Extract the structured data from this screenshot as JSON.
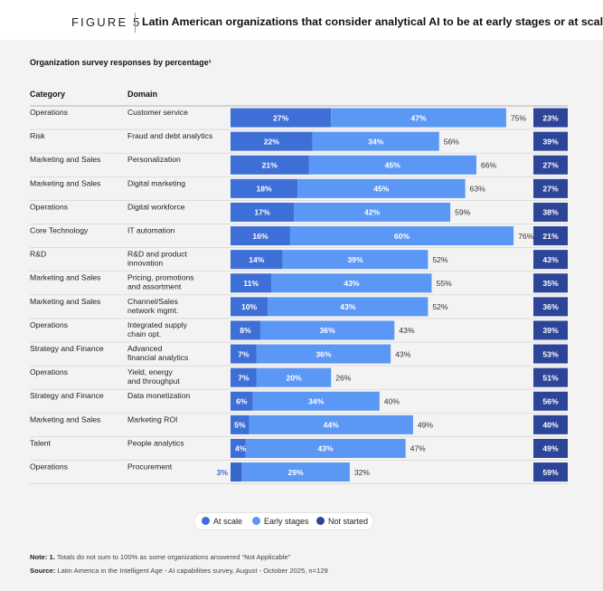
{
  "figure": {
    "label": "FIGURE 5",
    "title": "Latin American organizations that consider analytical AI to be at early stages or at scale"
  },
  "subtitle": "Organization survey responses by percentage¹",
  "headers": {
    "category": "Category",
    "domain": "Domain"
  },
  "colors": {
    "at_scale": "#3d6fd6",
    "early_stages": "#5b97f5",
    "not_started": "#2d4599",
    "at_scale_low": "#3568c9",
    "label_light": "#ffffff",
    "label_dark": "#333333",
    "row_line": "#d4d4d4",
    "header_line": "#9e9e9e"
  },
  "legend": [
    {
      "label": "At scale",
      "color": "#3d6fd6"
    },
    {
      "label": "Early stages",
      "color": "#5b97f5"
    },
    {
      "label": "Not started",
      "color": "#2d4599"
    }
  ],
  "chart_data": {
    "type": "bar",
    "orientation": "horizontal",
    "stacked": true,
    "x_range": [
      0,
      100
    ],
    "unit": "%",
    "series_names": [
      "At scale",
      "Early stages",
      "Not started"
    ],
    "rows": [
      {
        "category": "Operations",
        "domain": "Customer service",
        "at_scale": 27,
        "early": 47,
        "total": 75,
        "not_started": 23
      },
      {
        "category": "Risk",
        "domain": "Fraud and debt analytics",
        "at_scale": 22,
        "early": 34,
        "total": 56,
        "not_started": 39
      },
      {
        "category": "Marketing and Sales",
        "domain": "Personalization",
        "at_scale": 21,
        "early": 45,
        "total": 66,
        "not_started": 27
      },
      {
        "category": "Marketing and Sales",
        "domain": "Digital marketing",
        "at_scale": 18,
        "early": 45,
        "total": 63,
        "not_started": 27
      },
      {
        "category": "Operations",
        "domain": "Digital workforce",
        "at_scale": 17,
        "early": 42,
        "total": 59,
        "not_started": 38
      },
      {
        "category": "Core Technology",
        "domain": "IT automation",
        "at_scale": 16,
        "early": 60,
        "total": 76,
        "not_started": 21
      },
      {
        "category": "R&D",
        "domain": "R&D and product innovation",
        "domain_lines": [
          "R&D and product",
          "innovation"
        ],
        "at_scale": 14,
        "early": 39,
        "total": 52,
        "not_started": 43
      },
      {
        "category": "Marketing and Sales",
        "domain": "Pricing, promotions and assortment",
        "domain_lines": [
          "Pricing, promotions",
          "and assortment"
        ],
        "at_scale": 11,
        "early": 43,
        "total": 55,
        "not_started": 35
      },
      {
        "category": "Marketing and Sales",
        "domain": "Channel/Sales network mgmt.",
        "domain_lines": [
          "Channel/Sales",
          "network mgmt."
        ],
        "at_scale": 10,
        "early": 43,
        "total": 52,
        "not_started": 36
      },
      {
        "category": "Operations",
        "domain": "Integrated supply chain opt.",
        "domain_lines": [
          "Integrated supply",
          "chain opt."
        ],
        "at_scale": 8,
        "early": 36,
        "total": 43,
        "not_started": 39
      },
      {
        "category": "Strategy and Finance",
        "domain": "Advanced financial analytics",
        "domain_lines": [
          "Advanced",
          "financial analytics"
        ],
        "at_scale": 7,
        "early": 36,
        "total": 43,
        "not_started": 53
      },
      {
        "category": "Operations",
        "domain": "Yield, energy and throughput",
        "domain_lines": [
          "Yield, energy",
          "and throughput"
        ],
        "at_scale": 7,
        "early": 20,
        "total": 26,
        "not_started": 51
      },
      {
        "category": "Strategy and Finance",
        "domain": "Data monetization",
        "at_scale": 6,
        "early": 34,
        "total": 40,
        "not_started": 56
      },
      {
        "category": "Marketing and Sales",
        "domain": "Marketing ROI",
        "at_scale": 5,
        "early": 44,
        "total": 49,
        "not_started": 40
      },
      {
        "category": "Talent",
        "domain": "People analytics",
        "at_scale": 4,
        "early": 43,
        "total": 47,
        "not_started": 49
      },
      {
        "category": "Operations",
        "domain": "Procurement",
        "at_scale": 3,
        "early": 29,
        "total": 32,
        "not_started": 59
      }
    ]
  },
  "note": {
    "label": "Note: 1.",
    "text": "Totals do not sum to 100% as some organizations answered “Not Applicable”"
  },
  "source": {
    "label": "Source:",
    "text": "Latin America in the Intelligent Age - AI capabilities survey, August - October 2025, n=129"
  }
}
